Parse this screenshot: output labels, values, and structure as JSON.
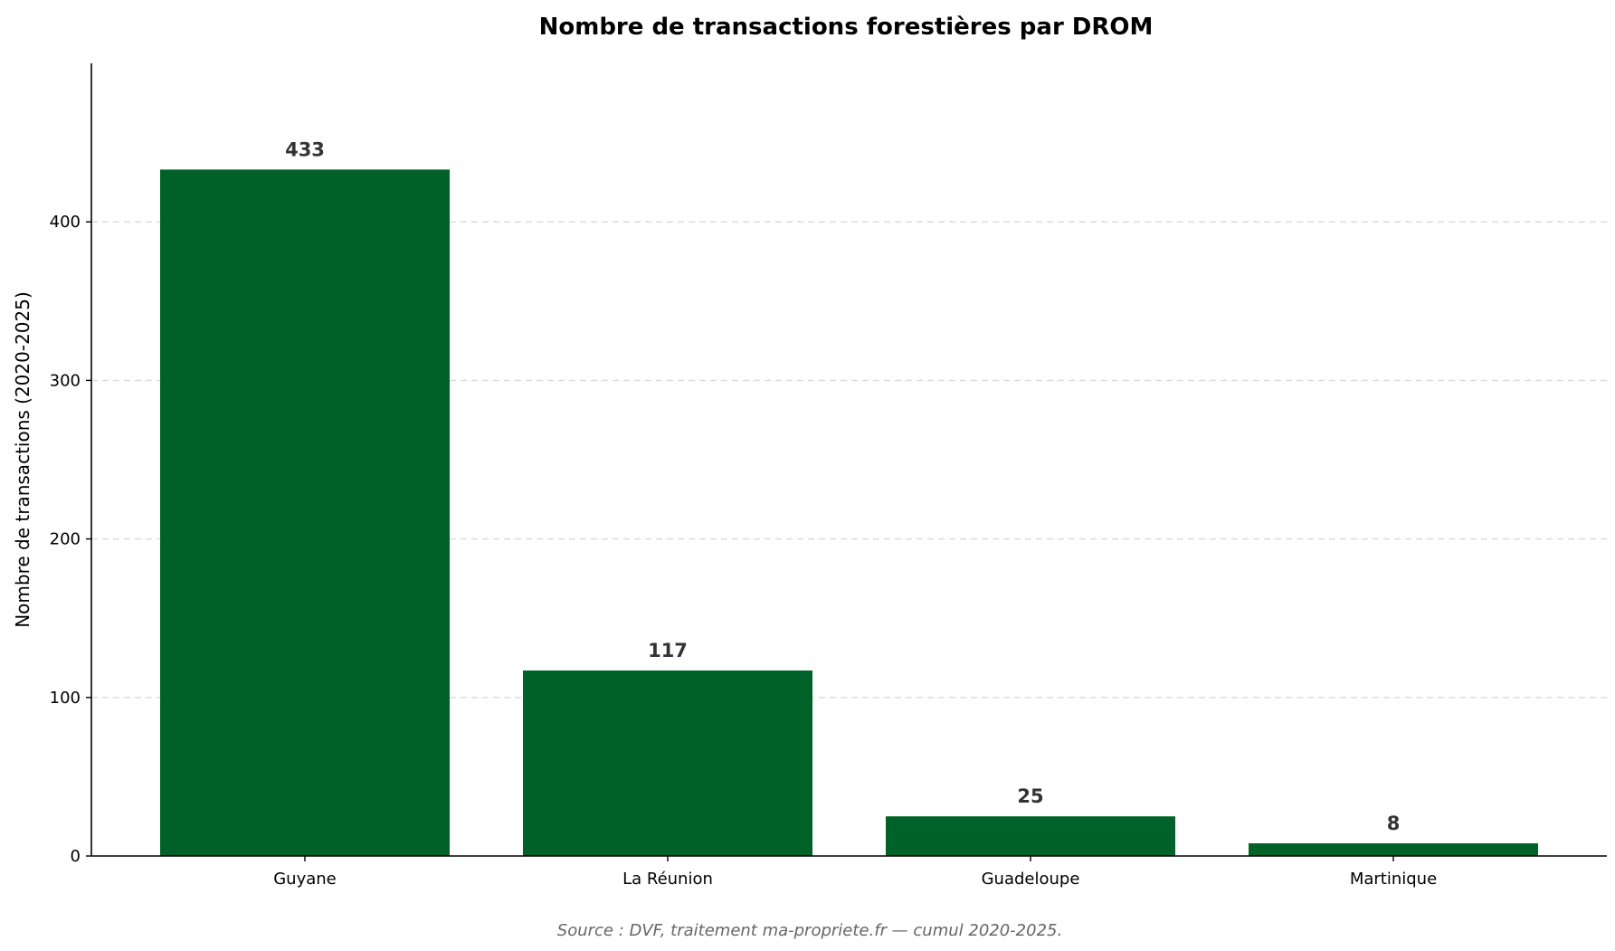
{
  "chart_data": {
    "type": "bar",
    "title": "Nombre de transactions forestières par DROM",
    "xlabel": "",
    "ylabel": "Nombre de transactions (2020-2025)",
    "categories": [
      "Guyane",
      "La Réunion",
      "Guadeloupe",
      "Martinique"
    ],
    "values": [
      433,
      117,
      25,
      8
    ],
    "data_labels": [
      "433",
      "117",
      "25",
      "8"
    ],
    "ylim": [
      0,
      500
    ],
    "yticks": [
      0,
      100,
      200,
      300,
      400
    ],
    "ytick_labels": [
      "0",
      "100",
      "200",
      "300",
      "400"
    ],
    "grid": "y-dashed",
    "bar_color": "#006228",
    "grid_color": "#d9d9d9",
    "source": "Source : DVF, traitement ma-propriete.fr — cumul 2020-2025."
  }
}
